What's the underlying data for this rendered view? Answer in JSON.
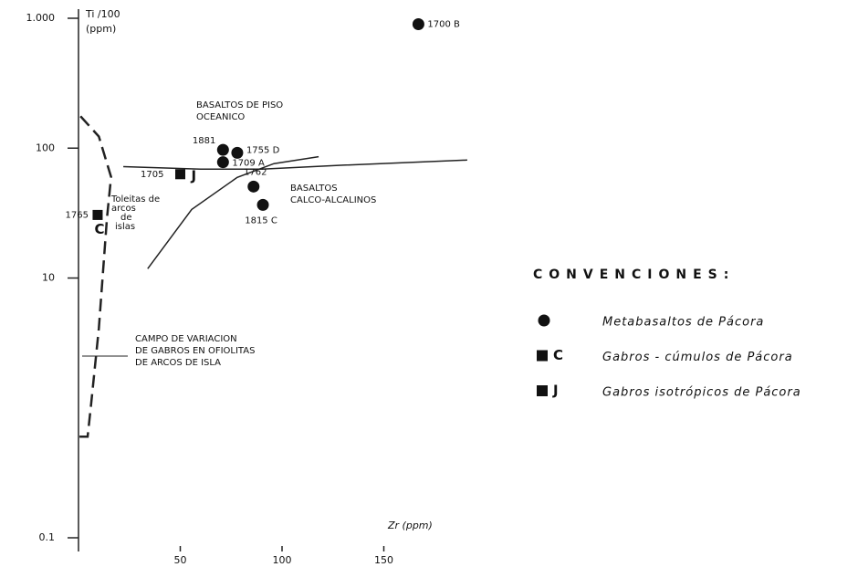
{
  "chart_data": {
    "type": "scatter",
    "y_label_lines": [
      "Ti /100",
      "(ppm)"
    ],
    "x_label": "Zr (ppm)",
    "xlim": [
      0,
      195
    ],
    "xticks": [
      50,
      100,
      150
    ],
    "ylim": [
      0.1,
      1000
    ],
    "log_y": true,
    "yticks": [
      {
        "value": 1000,
        "label": "1.000"
      },
      100,
      10,
      0.1
    ],
    "legend_title": "CONVENCIONES:",
    "series": [
      {
        "name": "Metabasaltos de Pácora",
        "marker": "circle",
        "color": "#111111",
        "x": [
          167,
          71,
          78,
          71,
          86,
          90.6
        ],
        "values": [
          900,
          97,
          92,
          78,
          50.6,
          36.6
        ],
        "point_labels": [
          "1700 B",
          "1881",
          "1755 D",
          "1709 A",
          "1762",
          "1815 C"
        ]
      },
      {
        "name": "Gabros - cúmulos de Pácora",
        "marker": "square",
        "letter": "C",
        "color": "#111111",
        "x": [
          9.4
        ],
        "values": [
          30.6
        ],
        "point_labels": [
          "1765"
        ]
      },
      {
        "name": "Gabros isotrópicos de Pácora",
        "marker": "square",
        "letter": "J",
        "color": "#111111",
        "x": [
          50
        ],
        "values": [
          63
        ],
        "point_labels": [
          "1705"
        ]
      }
    ],
    "curves": [
      {
        "style": "solid",
        "x": [
          22,
          60,
          90,
          130,
          191
        ],
        "values": [
          72,
          69,
          69,
          74,
          81
        ]
      },
      {
        "style": "solid",
        "x": [
          34,
          55.6,
          78,
          96,
          118
        ],
        "values": [
          11.8,
          33.7,
          59.5,
          76,
          86
        ]
      },
      {
        "style": "dashed",
        "x": [
          1,
          10,
          16,
          14,
          10,
          6.3,
          4.5,
          0.5
        ],
        "values": [
          176,
          123,
          60,
          29,
          4.1,
          1.1,
          0.6,
          0.6
        ]
      }
    ],
    "annotations": [
      {
        "lines": [
          "BASALTOS DE PISO",
          "OCEANICO"
        ]
      },
      {
        "lines": [
          "BASALTOS",
          "CALCO-ALCALINOS"
        ]
      },
      {
        "lines": [
          "Toleitas de",
          "arcos",
          "de",
          "islas"
        ]
      },
      {
        "lines": [
          "CAMPO DE VARIACION",
          "DE GABROS EN OFIOLITAS",
          "DE ARCOS DE ISLA"
        ]
      }
    ]
  }
}
